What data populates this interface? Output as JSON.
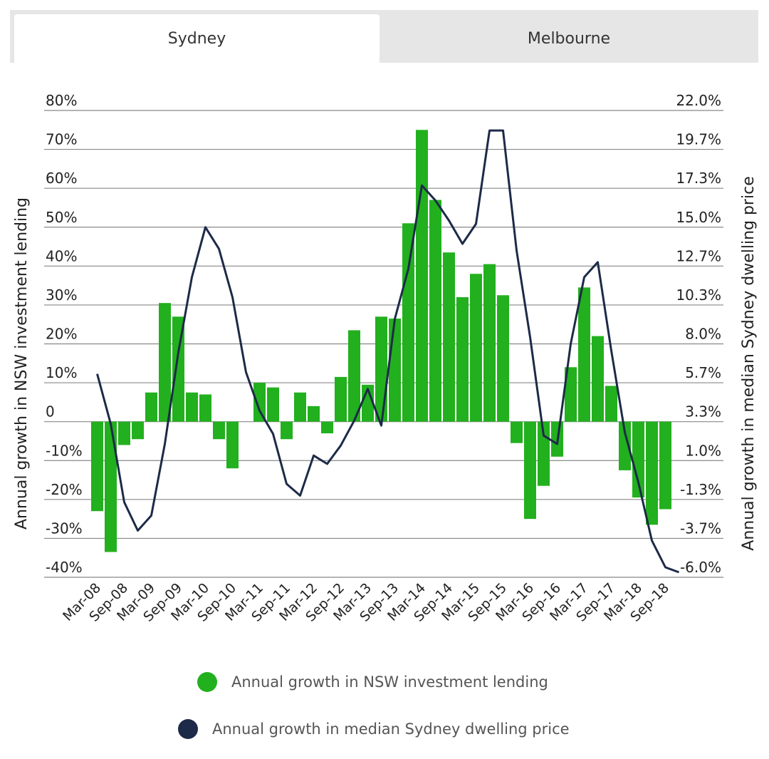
{
  "tabs": [
    {
      "label": "Sydney",
      "active": true
    },
    {
      "label": "Melbourne",
      "active": false
    }
  ],
  "chart_data": {
    "type": "bar",
    "x": [
      "Mar-08",
      "Jun-08",
      "Sep-08",
      "Dec-08",
      "Mar-09",
      "Jun-09",
      "Sep-09",
      "Dec-09",
      "Mar-10",
      "Jun-10",
      "Sep-10",
      "Dec-10",
      "Mar-11",
      "Jun-11",
      "Sep-11",
      "Dec-11",
      "Mar-12",
      "Jun-12",
      "Sep-12",
      "Dec-12",
      "Mar-13",
      "Jun-13",
      "Sep-13",
      "Dec-13",
      "Mar-14",
      "Jun-14",
      "Sep-14",
      "Dec-14",
      "Mar-15",
      "Jun-15",
      "Sep-15",
      "Dec-15",
      "Mar-16",
      "Jun-16",
      "Sep-16",
      "Dec-16",
      "Mar-17",
      "Jun-17",
      "Sep-17",
      "Dec-17",
      "Mar-18",
      "Jun-18",
      "Sep-18",
      "Dec-18"
    ],
    "x_tick_labels": [
      "Mar-08",
      "Sep-08",
      "Mar-09",
      "Sep-09",
      "Mar-10",
      "Sep-10",
      "Mar-11",
      "Sep-11",
      "Mar-12",
      "Sep-12",
      "Mar-13",
      "Sep-13",
      "Mar-14",
      "Sep-14",
      "Mar-15",
      "Sep-15",
      "Mar-16",
      "Sep-16",
      "Mar-17",
      "Sep-17",
      "Mar-18",
      "Sep-18"
    ],
    "series": [
      {
        "name": "Annual growth in NSW investment lending",
        "type": "bar",
        "axis": "left",
        "color": "#22b01e",
        "values": [
          -23,
          -33.5,
          -6,
          -4.5,
          7.5,
          30.5,
          27,
          7.5,
          7,
          -4.5,
          -12,
          null,
          10,
          8.8,
          -4.5,
          7.5,
          4,
          -3,
          11.5,
          23.5,
          9.5,
          27,
          26.5,
          51,
          75,
          57,
          43.5,
          32,
          38,
          40.5,
          32.5,
          -5.5,
          -25,
          -16.5,
          -9,
          14,
          34.5,
          22,
          9.2,
          -12.5,
          -19.5,
          -26.5,
          -22.5,
          null
        ]
      },
      {
        "name": "Annual growth in median Sydney dwelling price",
        "type": "line",
        "axis": "right",
        "color": "#1d2a48",
        "values": [
          6.2,
          3.2,
          -1.5,
          -3.2,
          -2.3,
          2.0,
          7.5,
          12.0,
          15.0,
          13.7,
          10.8,
          6.3,
          4.0,
          2.6,
          -0.4,
          -1.1,
          1.3,
          0.8,
          1.9,
          3.4,
          5.3,
          3.1,
          9.5,
          12.5,
          17.5,
          16.6,
          15.4,
          14.0,
          15.2,
          20.8,
          20.8,
          13.6,
          8.4,
          2.5,
          2.0,
          8.0,
          12.0,
          12.9,
          7.6,
          2.7,
          -0.3,
          -3.8,
          -5.4,
          -5.7
        ]
      }
    ],
    "y_left": {
      "label": "Annual growth in NSW investment lending",
      "range": [
        -40,
        80
      ],
      "ticks": [
        "80%",
        "70%",
        "60%",
        "50%",
        "40%",
        "30%",
        "20%",
        "10%",
        "0",
        "-10%",
        "-20%",
        "-30%",
        "-40%"
      ]
    },
    "y_right": {
      "label": "Annual growth in median Sydney dwelling price",
      "range": [
        -6.0,
        22.0
      ],
      "ticks": [
        "22.0%",
        "19.7%",
        "17.3%",
        "15.0%",
        "12.7%",
        "10.3%",
        "8.0%",
        "5.7%",
        "3.3%",
        "1.0%",
        "-1.3%",
        "-3.7%",
        "-6.0%"
      ]
    },
    "grid": true,
    "legend": "bottom"
  },
  "legend": [
    {
      "label": "Annual growth in NSW investment lending",
      "color": "#22b01e"
    },
    {
      "label": "Annual growth in median Sydney dwelling price",
      "color": "#1d2a48"
    }
  ]
}
